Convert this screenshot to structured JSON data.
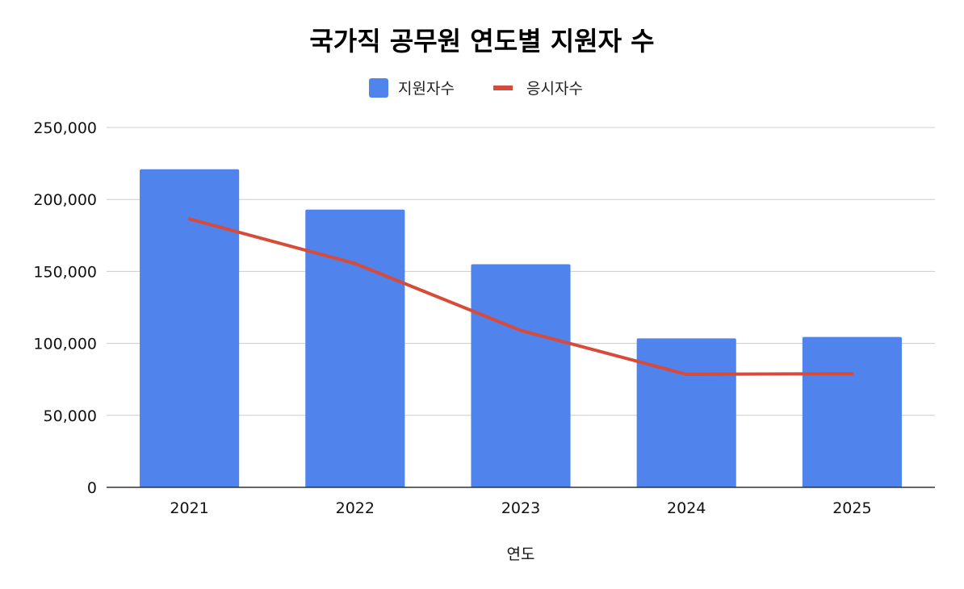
{
  "chart_data": {
    "type": "bar",
    "title": "국가직 공무원 연도별 지원자 수",
    "xlabel": "연도",
    "ylabel": "",
    "categories": [
      "2021",
      "2022",
      "2023",
      "2024",
      "2025"
    ],
    "ylim": [
      0,
      250000
    ],
    "yticks": [
      0,
      50000,
      100000,
      150000,
      200000,
      250000
    ],
    "ytick_labels": [
      "0",
      "50,000",
      "100,000",
      "150,000",
      "200,000",
      "250,000"
    ],
    "grid": true,
    "legend_position": "top",
    "series": [
      {
        "name": "지원자수",
        "type": "bar",
        "color": "#5083ec",
        "values": [
          221000,
          193000,
          155000,
          103500,
          104500
        ]
      },
      {
        "name": "응시자수",
        "type": "line",
        "color": "#d64b39",
        "values": [
          186500,
          155500,
          109000,
          78500,
          79000
        ]
      }
    ]
  }
}
